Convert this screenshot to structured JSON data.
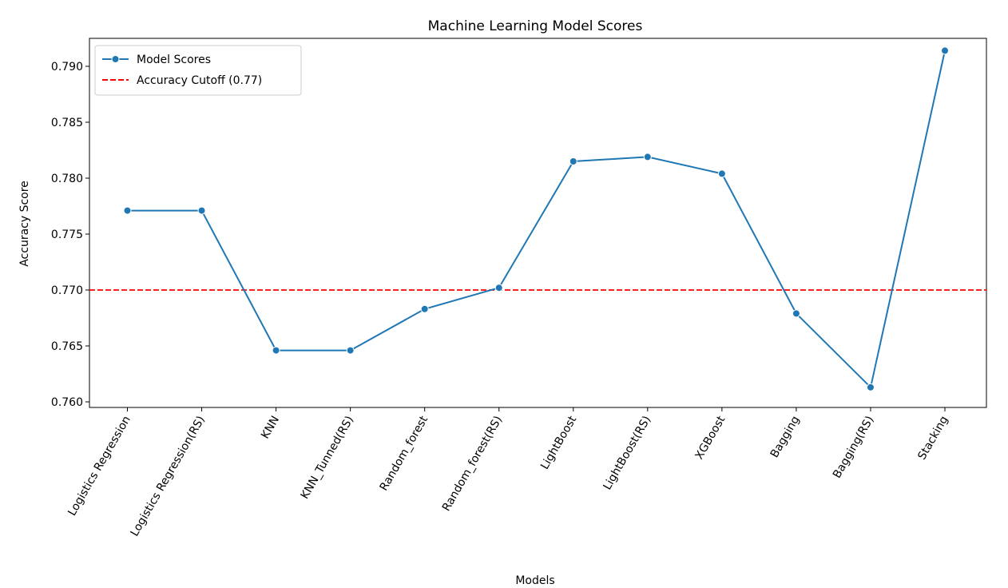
{
  "chart_data": {
    "type": "line",
    "title": "Machine Learning Model Scores",
    "xlabel": "Models",
    "ylabel": "Accuracy Score",
    "categories": [
      "Logistics Regression",
      "Logistics Regression(RS)",
      "KNN",
      "KNN_Tunned(RS)",
      "Random_forest",
      "Random_forest(RS)",
      "LightBoost",
      "LightBoost(RS)",
      "XGBoost",
      "Bagging",
      "Bagging(RS)",
      "Stacking"
    ],
    "series": [
      {
        "name": "Model Scores",
        "color": "#1f77b4",
        "marker": "circle",
        "values": [
          0.7771,
          0.7771,
          0.7646,
          0.7646,
          0.7683,
          0.7702,
          0.7815,
          0.7819,
          0.7804,
          0.7679,
          0.7613,
          0.7914
        ]
      }
    ],
    "reference_lines": [
      {
        "name": "Accuracy Cutoff (0.77)",
        "y": 0.77,
        "color": "#ff0000",
        "style": "dashed"
      }
    ],
    "ylim": [
      0.7595,
      0.7925
    ],
    "yticks": [
      0.76,
      0.765,
      0.77,
      0.775,
      0.78,
      0.785,
      0.79
    ],
    "ytick_labels": [
      "0.760",
      "0.765",
      "0.770",
      "0.775",
      "0.780",
      "0.785",
      "0.790"
    ],
    "grid": false,
    "legend_position": "top-left"
  }
}
